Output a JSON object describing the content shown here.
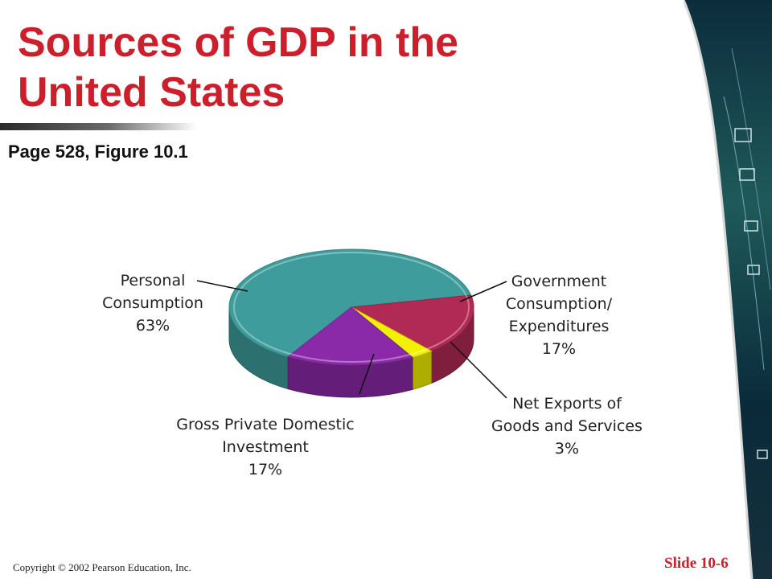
{
  "slide": {
    "title_lines": [
      "Sources of GDP in the",
      "United States"
    ],
    "subtitle": "Page 528, Figure 10.1",
    "copyright": "Copyright © 2002 Pearson Education, Inc.",
    "slide_number": "Slide 10-6"
  },
  "chart_data": {
    "type": "pie",
    "style": "3d",
    "slices": [
      {
        "label_lines": [
          "Personal",
          "Consumption",
          "63%"
        ],
        "value": 63,
        "color": "#3e9c9c"
      },
      {
        "label_lines": [
          "Government",
          "Consumption/",
          "Expenditures",
          "17%"
        ],
        "value": 17,
        "color": "#b02a55"
      },
      {
        "label_lines": [
          "Net Exports of",
          "Goods and Services",
          "3%"
        ],
        "value": 3,
        "color": "#f2f200"
      },
      {
        "label_lines": [
          "Gross Private Domestic",
          "Investment",
          "17%"
        ],
        "value": 17,
        "color": "#8b2aa8"
      }
    ]
  }
}
